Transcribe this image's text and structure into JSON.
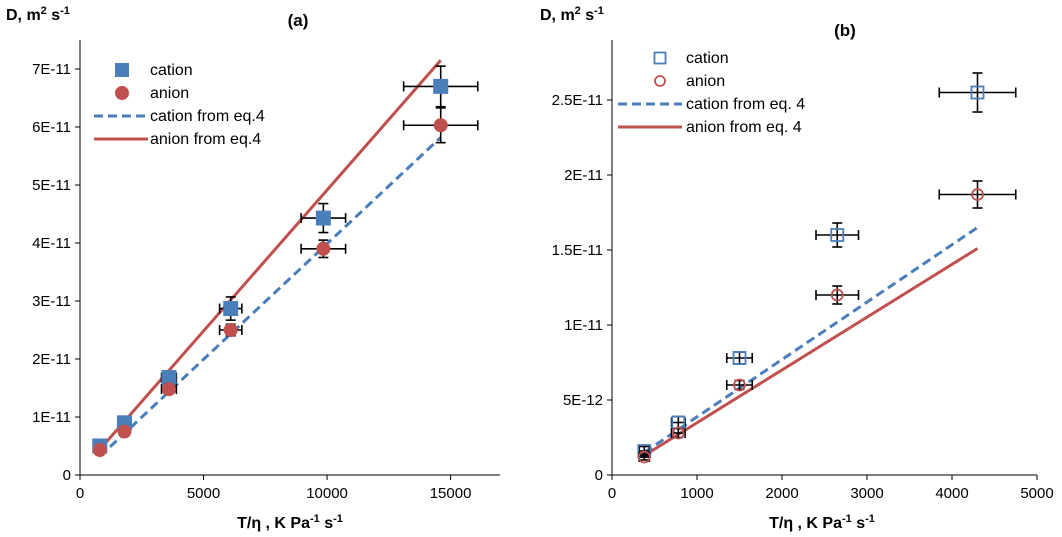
{
  "chart_data": [
    {
      "type": "scatter",
      "panel_label": "(a)",
      "ylabel_main": "D, m",
      "ylabel_sup1": "2",
      "ylabel_mid": " s",
      "ylabel_sup2": "-1",
      "xlabel_main": "T/η , K Pa",
      "xlabel_sup1": "-1",
      "xlabel_mid": " s",
      "xlabel_sup2": "-1",
      "xlim": [
        0,
        17000
      ],
      "ylim": [
        0,
        7.5e-11
      ],
      "xticks": [
        0,
        5000,
        10000,
        15000
      ],
      "xtick_labels": [
        "0",
        "5000",
        "10000",
        "15000"
      ],
      "yticks": [
        0,
        1e-11,
        2e-11,
        3e-11,
        4e-11,
        5e-11,
        6e-11,
        7e-11
      ],
      "ytick_labels": [
        "0",
        "1E-11",
        "2E-11",
        "3E-11",
        "4E-11",
        "5E-11",
        "6E-11",
        "7E-11"
      ],
      "legend_position": "top-left",
      "series": [
        {
          "name": "cation",
          "kind": "points",
          "marker": "filled-square",
          "color": "#4a7ebb",
          "x": [
            800,
            1800,
            3600,
            6100,
            9850,
            14600
          ],
          "y": [
            5e-12,
            9e-12,
            1.68e-11,
            2.87e-11,
            4.43e-11,
            6.7e-11
          ],
          "xerr": [
            0,
            0,
            300,
            450,
            900,
            1500
          ],
          "yerr": [
            0,
            0,
            1e-12,
            2e-12,
            2.5e-12,
            3.5e-12
          ]
        },
        {
          "name": "anion",
          "kind": "points",
          "marker": "filled-circle",
          "color": "#c0504d",
          "x": [
            800,
            1800,
            3600,
            6100,
            9850,
            14600
          ],
          "y": [
            4.3e-12,
            7.5e-12,
            1.48e-11,
            2.5e-11,
            3.9e-11,
            6.03e-11
          ],
          "xerr": [
            0,
            0,
            300,
            450,
            900,
            1500
          ],
          "yerr": [
            0,
            0,
            8e-13,
            1e-12,
            1.5e-12,
            3e-12
          ]
        },
        {
          "name": "cation from eq.4",
          "kind": "line",
          "style": "dashed",
          "color": "#4a7ebb",
          "x": [
            800,
            14600
          ],
          "y": [
            3.2e-12,
            5.82e-11
          ]
        },
        {
          "name": "anion from eq.4",
          "kind": "line",
          "style": "solid",
          "color": "#c0504d",
          "x": [
            800,
            14600
          ],
          "y": [
            4.4e-12,
            7.15e-11
          ]
        }
      ]
    },
    {
      "type": "scatter",
      "panel_label": "(b)",
      "ylabel_main": "D, m",
      "ylabel_sup1": "2",
      "ylabel_mid": " s",
      "ylabel_sup2": "-1",
      "xlabel_main": "T/η , K Pa",
      "xlabel_sup1": "-1",
      "xlabel_mid": " s",
      "xlabel_sup2": "-1",
      "xlim": [
        0,
        5000
      ],
      "ylim": [
        0,
        2.9e-11
      ],
      "xticks": [
        0,
        1000,
        2000,
        3000,
        4000,
        5000
      ],
      "xtick_labels": [
        "0",
        "1000",
        "2000",
        "3000",
        "4000",
        "5000"
      ],
      "yticks": [
        0,
        5e-12,
        1e-11,
        1.5e-11,
        2e-11,
        2.5e-11
      ],
      "ytick_labels": [
        "0",
        "5E-12",
        "1E-11",
        "1.5E-11",
        "2E-11",
        "2.5E-11"
      ],
      "legend_position": "top-left",
      "series": [
        {
          "name": "cation",
          "kind": "points",
          "marker": "open-square",
          "color": "#4a7ebb",
          "x": [
            380,
            780,
            1500,
            2650,
            4300
          ],
          "y": [
            1.6e-12,
            3.5e-12,
            7.8e-12,
            1.6e-11,
            2.55e-11
          ],
          "xerr": [
            60,
            80,
            150,
            250,
            450
          ],
          "yerr": [
            3e-13,
            4e-13,
            4e-13,
            8e-13,
            1.3e-12
          ]
        },
        {
          "name": "anion",
          "kind": "points",
          "marker": "open-circle",
          "color": "#c0504d",
          "x": [
            380,
            780,
            1500,
            2650,
            4300
          ],
          "y": [
            1.2e-12,
            2.8e-12,
            6e-12,
            1.2e-11,
            1.87e-11
          ],
          "xerr": [
            60,
            80,
            150,
            250,
            450
          ],
          "yerr": [
            2e-13,
            3e-13,
            3e-13,
            6e-13,
            9e-13
          ]
        },
        {
          "name": "cation from eq. 4",
          "kind": "line",
          "style": "dashed",
          "color": "#4a7ebb",
          "x": [
            380,
            4300
          ],
          "y": [
            1.5e-12,
            1.65e-11
          ]
        },
        {
          "name": "anion from eq. 4",
          "kind": "line",
          "style": "solid",
          "color": "#c0504d",
          "x": [
            380,
            4300
          ],
          "y": [
            1.3e-12,
            1.51e-11
          ]
        }
      ]
    }
  ]
}
